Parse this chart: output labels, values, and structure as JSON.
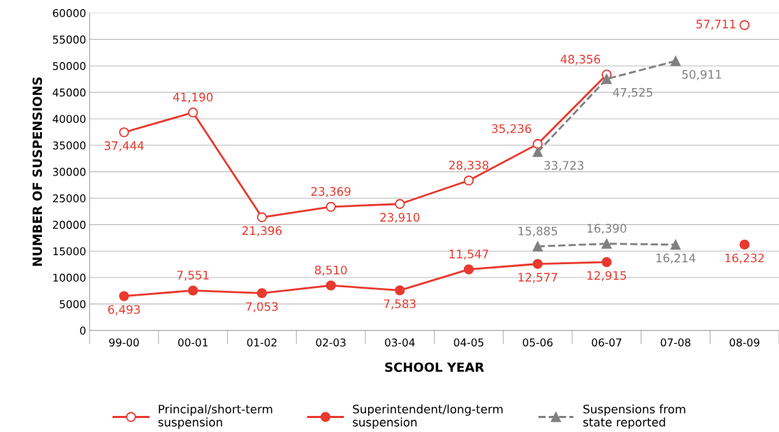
{
  "chart_data": {
    "type": "line",
    "xlabel": "SCHOOL YEAR",
    "ylabel": "NUMBER OF SUSPENSIONS",
    "categories": [
      "99-00",
      "00-01",
      "01-02",
      "02-03",
      "03-04",
      "04-05",
      "05-06",
      "06-07",
      "07-08",
      "08-09"
    ],
    "ylim": [
      0,
      60000
    ],
    "yticks": [
      0,
      5000,
      10000,
      15000,
      20000,
      25000,
      30000,
      35000,
      40000,
      45000,
      50000,
      55000,
      60000
    ],
    "grid": "y",
    "legend": "bottom",
    "line_style": "solid",
    "series": [
      {
        "name": "Principal/short-term\nsuspension",
        "color": "#e8392f",
        "marker": "circle",
        "values": [
          37444,
          41190,
          21396,
          23369,
          23910,
          28338,
          35236,
          48356,
          null,
          57711
        ],
        "value_labels": [
          "37,444",
          "41,190",
          "21,396",
          "23,369",
          "23,910",
          "28,338",
          "35,236",
          "48,356",
          null,
          "57,711"
        ]
      },
      {
        "name": "Superintendent/long-term\nsuspension",
        "color": "#e8392f",
        "marker": "circle",
        "values": [
          6493,
          7551,
          7053,
          8510,
          7583,
          11547,
          12577,
          12915,
          null,
          16232
        ],
        "value_labels": [
          "6,493",
          "7,551",
          "7,053",
          "8,510",
          "7,583",
          "11,547",
          "12,577",
          "12,915",
          null,
          "16,232"
        ]
      },
      {
        "name": "Suspensions from\nstate reported",
        "color": "#808080",
        "marker": "triangle",
        "line_style": "dashed",
        "values": [
          null,
          null,
          null,
          null,
          null,
          null,
          33723,
          47525,
          50911,
          null
        ],
        "value_labels": [
          null,
          null,
          null,
          null,
          null,
          null,
          "33,723",
          "47,525",
          "50,911",
          null
        ]
      },
      {
        "color": "#808080",
        "marker": "triangle",
        "line_style": "dashed",
        "values": [
          null,
          null,
          null,
          null,
          null,
          null,
          15885,
          16390,
          16214,
          null
        ],
        "value_labels": [
          null,
          null,
          null,
          null,
          null,
          null,
          "15,885",
          "16,390",
          "16,214",
          null
        ]
      }
    ]
  }
}
